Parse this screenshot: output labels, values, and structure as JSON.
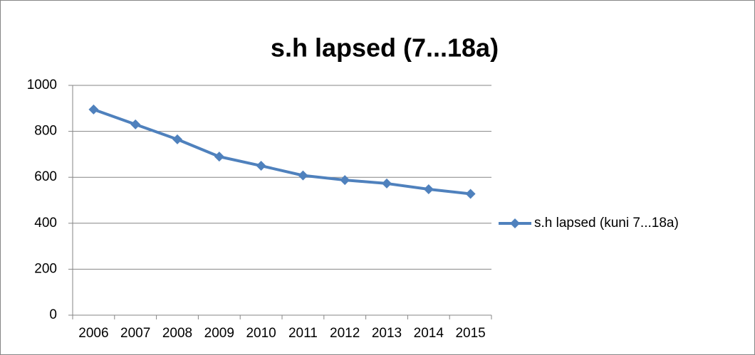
{
  "chart_data": {
    "type": "line",
    "title": "s.h lapsed (7...18a)",
    "categories": [
      "2006",
      "2007",
      "2008",
      "2009",
      "2010",
      "2011",
      "2012",
      "2013",
      "2014",
      "2015"
    ],
    "series": [
      {
        "name": "s.h lapsed (kuni 7...18a)",
        "color": "#4f81bd",
        "values": [
          895,
          830,
          765,
          690,
          650,
          608,
          588,
          573,
          548,
          528
        ]
      }
    ],
    "ylim": [
      0,
      1000
    ],
    "yticks": [
      0,
      200,
      400,
      600,
      800,
      1000
    ],
    "grid": true,
    "legend": "right"
  }
}
